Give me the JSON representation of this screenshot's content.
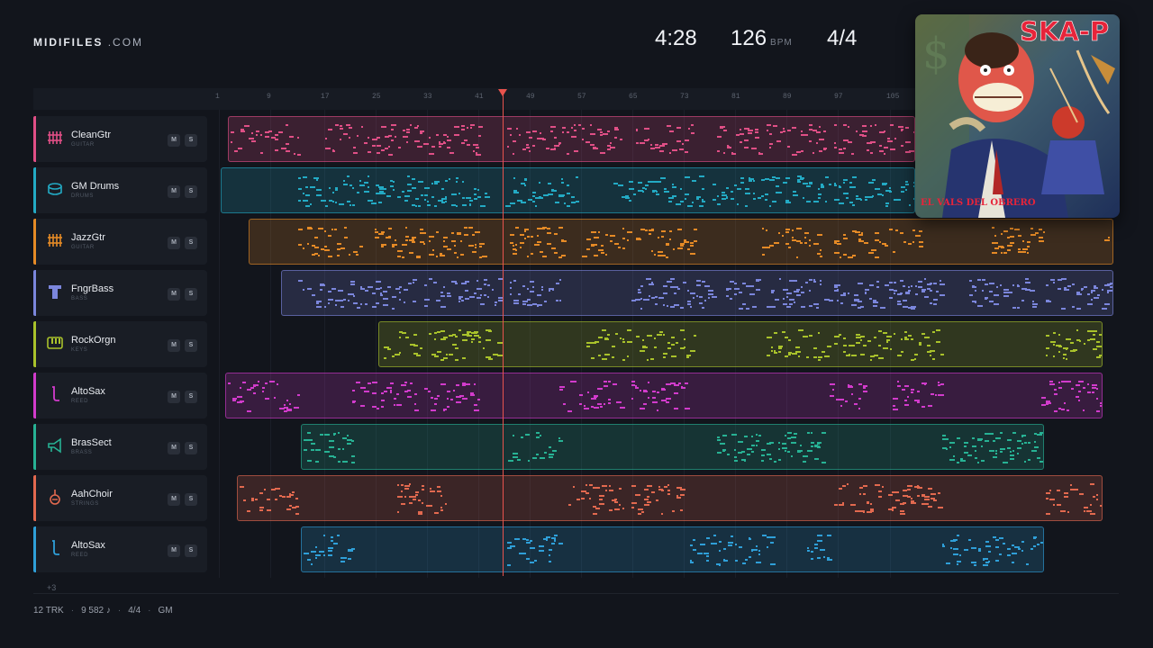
{
  "header": {
    "logo_bold": "MIDIFILES",
    "logo_domain": ".COM",
    "duration": "4:28",
    "tempo": "126",
    "tempo_unit": "BPM",
    "time_signature": "4/4"
  },
  "cover": {
    "artist": "SKA-P",
    "title": "EL VALS DEL OBRERO"
  },
  "ruler": {
    "ticks": [
      "1",
      "9",
      "17",
      "25",
      "33",
      "41",
      "49",
      "57",
      "65",
      "73",
      "81",
      "89",
      "97",
      "105"
    ]
  },
  "buttons": {
    "mute": "M",
    "solo": "S"
  },
  "tracks": [
    {
      "name": "CleanGtr",
      "category": "GUITAR",
      "color": "#e04f86",
      "icon": "guitar-grid-icon"
    },
    {
      "name": "GM Drums",
      "category": "DRUMS",
      "color": "#23aac4",
      "icon": "drum-icon"
    },
    {
      "name": "JazzGtr",
      "category": "GUITAR",
      "color": "#e58a26",
      "icon": "guitar-grid-icon"
    },
    {
      "name": "FngrBass",
      "category": "BASS",
      "color": "#7b86dc",
      "icon": "bass-icon"
    },
    {
      "name": "RockOrgn",
      "category": "KEYS",
      "color": "#a9c22b",
      "icon": "keyboard-icon"
    },
    {
      "name": "AltoSax",
      "category": "REED",
      "color": "#d23bcc",
      "icon": "sax-icon"
    },
    {
      "name": "BrasSect",
      "category": "BRASS",
      "color": "#27b294",
      "icon": "horn-icon"
    },
    {
      "name": "AahChoir",
      "category": "STRINGS",
      "color": "#e2694f",
      "icon": "violin-icon"
    },
    {
      "name": "AltoSax",
      "category": "REED",
      "color": "#2f9fd8",
      "icon": "sax-icon"
    }
  ],
  "more_tracks": "+3",
  "footer": {
    "tracks": "12 TRK",
    "notes": "9 582 ♪",
    "meter": "4/4",
    "standard": "GM"
  }
}
